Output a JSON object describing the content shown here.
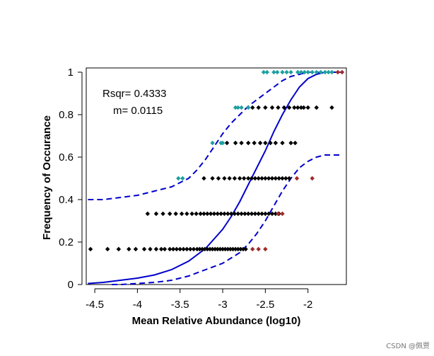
{
  "chart_data": {
    "type": "scatter",
    "title": "",
    "xlabel": "Mean Relative Abundance (log10)",
    "ylabel": "Frequency of Occurance",
    "xlim": [
      -4.6,
      -1.55
    ],
    "ylim": [
      0,
      1.02
    ],
    "xticks": [
      -4.5,
      -4,
      -3.5,
      -3,
      -2.5,
      -2
    ],
    "xtick_labels": [
      "-4.5",
      "-4",
      "-3.5",
      "-3",
      "-2.5",
      "-2"
    ],
    "yticks": [
      0,
      0.2,
      0.4,
      0.6,
      0.8,
      1
    ],
    "ytick_labels": [
      "0",
      "0.2",
      "0.4",
      "0.6",
      "0.8",
      "1"
    ],
    "grid": false,
    "annotations": [
      "Rsqr= 0.4333",
      "m= 0.0115"
    ],
    "colors": {
      "black": "#000000",
      "above": "#1f9f9f",
      "below": "#a02a2a",
      "fit": "#0000cc"
    },
    "points": {
      "black": [
        {
          "y": 0.1667,
          "x": [
            -4.55,
            -4.35,
            -4.22,
            -4.1,
            -4.02,
            -3.92,
            -3.85,
            -3.78,
            -3.72,
            -3.68,
            -3.62,
            -3.58,
            -3.54,
            -3.5,
            -3.46,
            -3.42,
            -3.38,
            -3.34,
            -3.3,
            -3.27,
            -3.24,
            -3.21,
            -3.18,
            -3.15,
            -3.12,
            -3.09,
            -3.06,
            -3.03,
            -3.0,
            -2.97,
            -2.94,
            -2.91,
            -2.88,
            -2.85,
            -2.82,
            -2.79,
            -2.76,
            -2.73
          ]
        },
        {
          "y": 0.3333,
          "x": [
            -3.88,
            -3.78,
            -3.7,
            -3.62,
            -3.55,
            -3.48,
            -3.42,
            -3.36,
            -3.31,
            -3.26,
            -3.22,
            -3.18,
            -3.14,
            -3.1,
            -3.06,
            -3.02,
            -2.98,
            -2.94,
            -2.9,
            -2.86,
            -2.82,
            -2.78,
            -2.74,
            -2.7,
            -2.66,
            -2.62,
            -2.58,
            -2.54,
            -2.5,
            -2.46,
            -2.42,
            -2.38,
            -2.34
          ]
        },
        {
          "y": 0.5,
          "x": [
            -3.22,
            -3.12,
            -3.05,
            -2.98,
            -2.92,
            -2.86,
            -2.8,
            -2.75,
            -2.7,
            -2.66,
            -2.62,
            -2.58,
            -2.54,
            -2.5,
            -2.46,
            -2.42,
            -2.38,
            -2.34,
            -2.3,
            -2.26,
            -2.22
          ]
        },
        {
          "y": 0.6667,
          "x": [
            -2.95,
            -2.85,
            -2.78,
            -2.7,
            -2.63,
            -2.56,
            -2.5,
            -2.44,
            -2.38,
            -2.3,
            -2.2,
            -2.15
          ]
        },
        {
          "y": 0.8333,
          "x": [
            -2.65,
            -2.58,
            -2.5,
            -2.42,
            -2.35,
            -2.28,
            -2.22,
            -2.16,
            -2.12,
            -2.08,
            -2.05,
            -2.0,
            -1.9,
            -1.72
          ]
        }
      ],
      "above": [
        {
          "y": 0.5,
          "x": [
            -3.52,
            -3.47
          ]
        },
        {
          "y": 0.6667,
          "x": [
            -3.12,
            -3.02,
            -3.0
          ]
        },
        {
          "y": 0.8333,
          "x": [
            -2.85,
            -2.82,
            -2.78,
            -2.7
          ]
        },
        {
          "y": 1.0,
          "x": [
            -2.52,
            -2.48,
            -2.4,
            -2.36,
            -2.3,
            -2.25,
            -2.2,
            -2.12,
            -2.08,
            -2.04,
            -2.0,
            -1.95,
            -1.9,
            -1.85,
            -1.8,
            -1.76,
            -1.72
          ]
        }
      ],
      "below": [
        {
          "y": 0.1667,
          "x": [
            -2.65,
            -2.58,
            -2.5
          ]
        },
        {
          "y": 0.3333,
          "x": [
            -2.35,
            -2.3
          ]
        },
        {
          "y": 0.5,
          "x": [
            -2.13,
            -1.95
          ]
        },
        {
          "y": 1.0,
          "x": [
            -1.65,
            -1.6
          ]
        }
      ]
    },
    "fit_curve": {
      "x": [
        -4.58,
        -4.4,
        -4.2,
        -4.0,
        -3.8,
        -3.6,
        -3.4,
        -3.2,
        -3.0,
        -2.9,
        -2.8,
        -2.7,
        -2.6,
        -2.5,
        -2.4,
        -2.3,
        -2.2,
        -2.1,
        -2.0,
        -1.9,
        -1.8,
        -1.7,
        -1.6
      ],
      "y": [
        0.005,
        0.01,
        0.02,
        0.03,
        0.045,
        0.07,
        0.11,
        0.17,
        0.26,
        0.32,
        0.39,
        0.47,
        0.55,
        0.63,
        0.72,
        0.8,
        0.87,
        0.93,
        0.97,
        0.99,
        1.0,
        1.0,
        1.0
      ]
    },
    "upper_ci": {
      "x": [
        -4.58,
        -4.4,
        -4.2,
        -4.0,
        -3.8,
        -3.6,
        -3.4,
        -3.3,
        -3.2,
        -3.1,
        -3.0,
        -2.9,
        -2.8,
        -2.7,
        -2.6,
        -2.5,
        -2.4,
        -2.3,
        -2.2,
        -2.1,
        -2.0,
        -1.9,
        -1.8,
        -1.7,
        -1.6
      ],
      "y": [
        0.4,
        0.4,
        0.41,
        0.42,
        0.44,
        0.46,
        0.5,
        0.54,
        0.59,
        0.65,
        0.71,
        0.76,
        0.8,
        0.84,
        0.87,
        0.9,
        0.93,
        0.96,
        0.98,
        0.99,
        1.0,
        1.0,
        1.0,
        1.0,
        1.0
      ]
    },
    "lower_ci": {
      "x": [
        -4.3,
        -4.2,
        -4.0,
        -3.8,
        -3.6,
        -3.4,
        -3.2,
        -3.0,
        -2.8,
        -2.7,
        -2.6,
        -2.5,
        -2.4,
        -2.3,
        -2.2,
        -2.1,
        -2.0,
        -1.9,
        -1.8,
        -1.7,
        -1.6
      ],
      "y": [
        0.0,
        0.0,
        0.005,
        0.01,
        0.02,
        0.04,
        0.07,
        0.1,
        0.15,
        0.19,
        0.24,
        0.3,
        0.37,
        0.44,
        0.5,
        0.55,
        0.58,
        0.6,
        0.61,
        0.61,
        0.61
      ]
    }
  },
  "watermark": "CSDN @佩贾"
}
